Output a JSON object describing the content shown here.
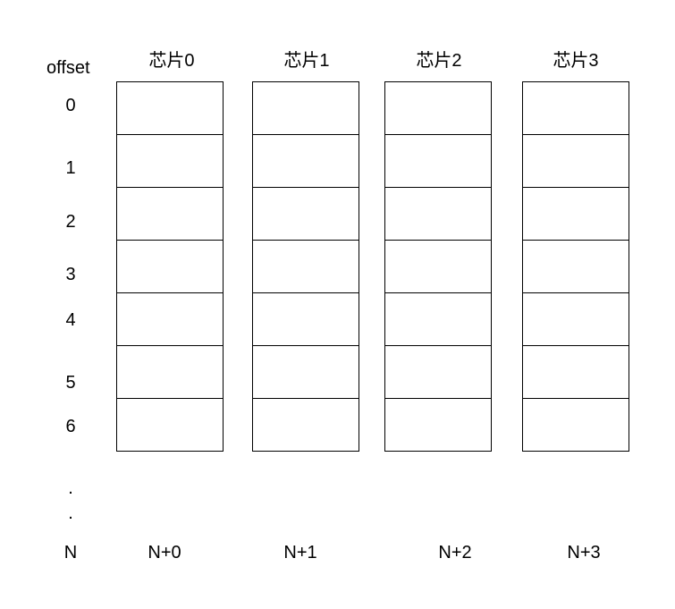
{
  "offset_label": "offset",
  "chips": [
    "芯片0",
    "芯片1",
    "芯片2",
    "芯片3"
  ],
  "row_offsets": [
    "0",
    "1",
    "2",
    "3",
    "4",
    "5",
    "6"
  ],
  "ellipsis": [
    ".",
    "."
  ],
  "row_n": "N",
  "footer": [
    "N+0",
    "N+1",
    "N+2",
    "N+3"
  ]
}
